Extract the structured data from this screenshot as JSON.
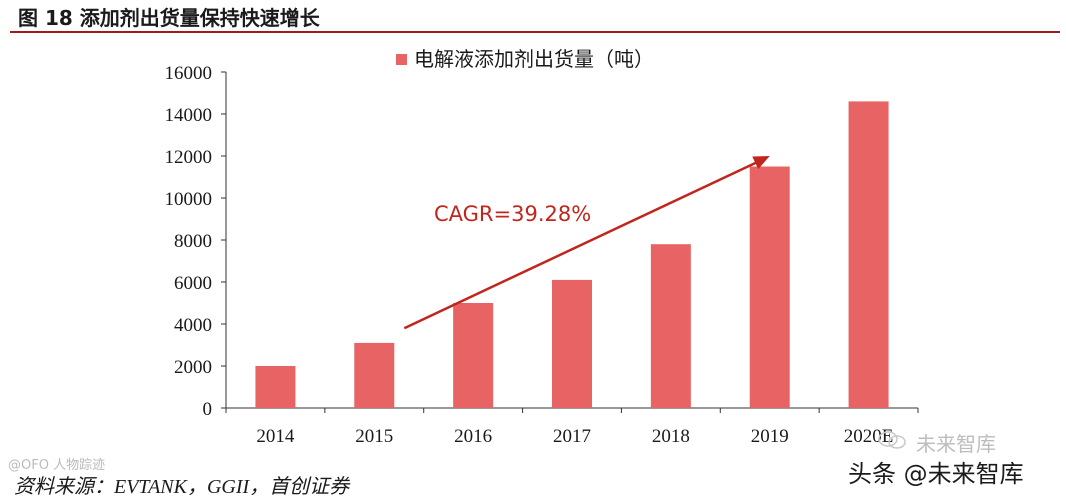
{
  "figure": {
    "title": "图 18 添加剂出货量保持快速增长",
    "source": "资料来源：EVTANK，GGII，首创证券",
    "watermarks": {
      "left": "@OFO 人物踪迹",
      "right_small": "未来智库",
      "right_main": "头条 @未来智库"
    }
  },
  "colors": {
    "bar": "#e86464",
    "arrow": "#c0261c",
    "axis": "#333333",
    "title_rule": "#9c1b1b"
  },
  "chart_data": {
    "type": "bar",
    "categories": [
      "2014",
      "2015",
      "2016",
      "2017",
      "2018",
      "2019",
      "2020E"
    ],
    "series": [
      {
        "name": "电解液添加剂出货量（吨）",
        "values": [
          2000,
          3100,
          5000,
          6100,
          7800,
          11500,
          14600
        ]
      }
    ],
    "ylim": [
      0,
      16000
    ],
    "yticks": [
      0,
      2000,
      4000,
      6000,
      8000,
      10000,
      12000,
      14000,
      16000
    ],
    "legend_position": "top-center",
    "grid": false,
    "annotations": [
      {
        "text": "CAGR=39.28%",
        "type": "arrow",
        "from_category": "2015",
        "from_value": 3800,
        "to_category": "2019",
        "to_value": 12000
      }
    ]
  }
}
